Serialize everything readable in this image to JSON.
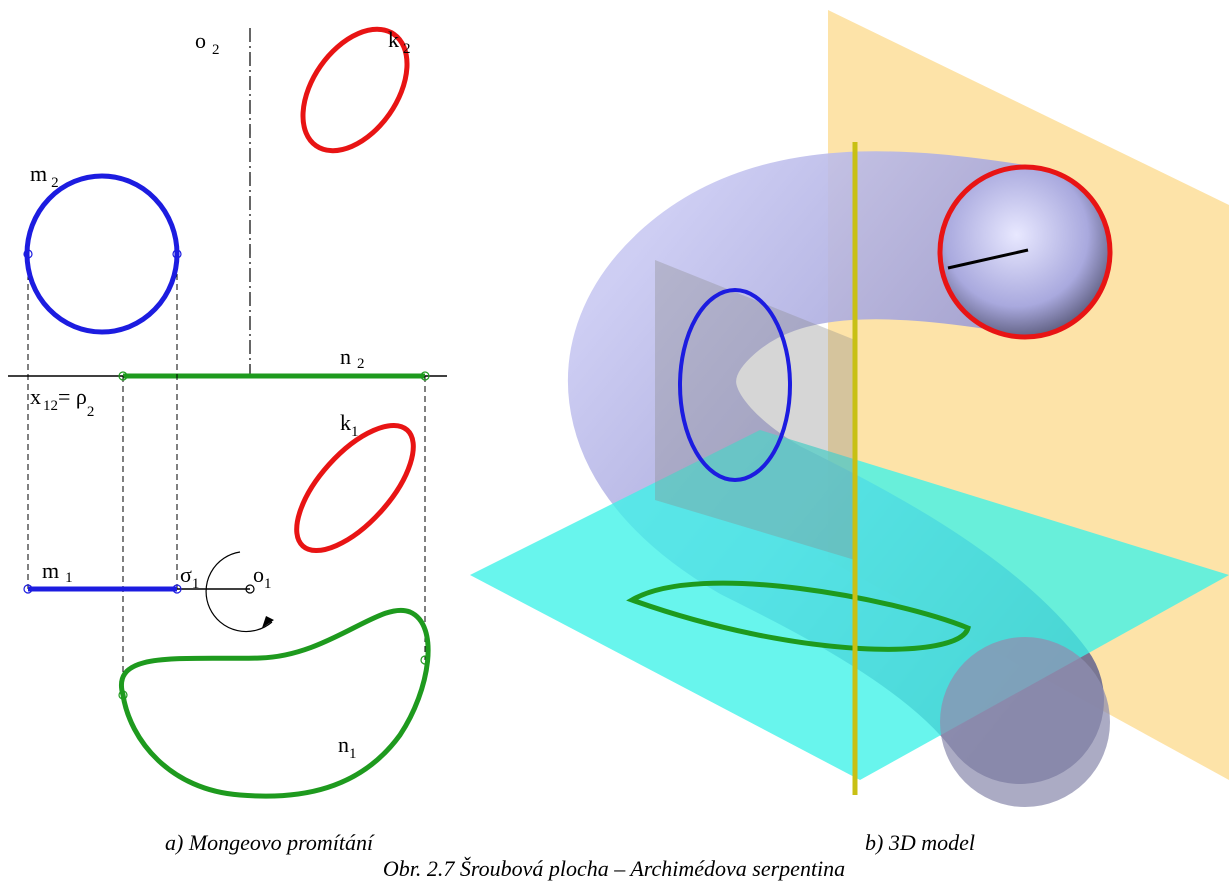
{
  "left_view": {
    "labels": [
      {
        "base": "o",
        "sub": "2"
      },
      {
        "base": "k",
        "sub": "2"
      },
      {
        "base": "m",
        "sub": "2"
      },
      {
        "base": "n",
        "sub": "2"
      },
      {
        "base": "x",
        "sub": "12",
        "base2": "= ρ",
        "sub2": "2"
      },
      {
        "base": "k",
        "sub": "1"
      },
      {
        "base": "m",
        "sub": "1"
      },
      {
        "base": "σ",
        "sub": "1"
      },
      {
        "base": "o",
        "sub": "1"
      },
      {
        "base": "n",
        "sub": "1"
      }
    ]
  },
  "captions": {
    "left": "a) Mongeovo promítání",
    "right": "b) 3D model",
    "figure": "Obr. 2.7 Šroubová plocha – Archimédova serpentina"
  }
}
